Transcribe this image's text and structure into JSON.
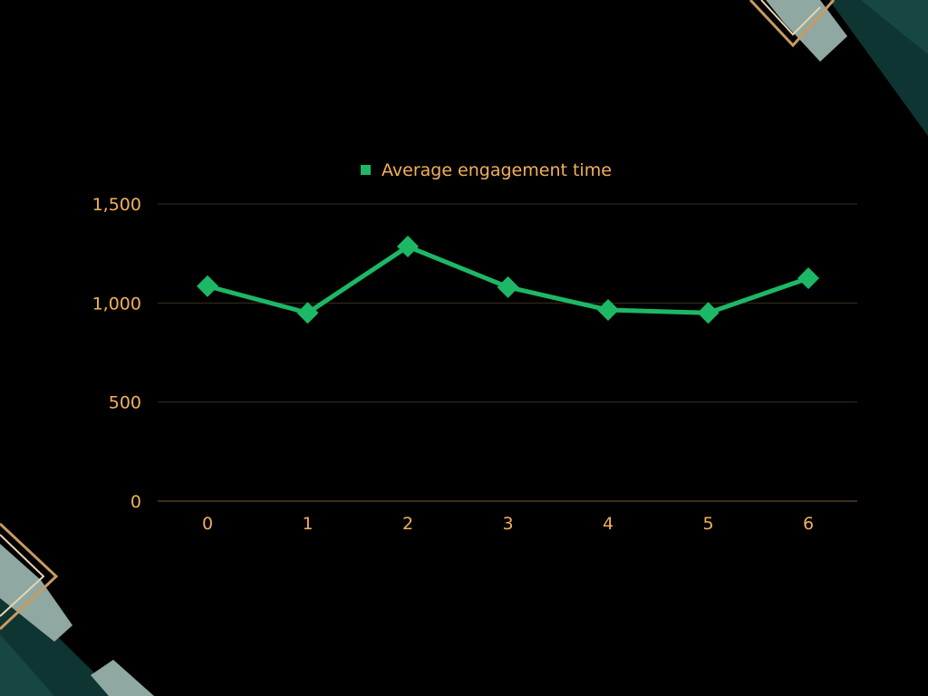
{
  "chart_data": {
    "type": "line",
    "x": [
      0,
      1,
      2,
      3,
      4,
      5,
      6
    ],
    "series": [
      {
        "name": "Average engagement time",
        "values": [
          1085,
          950,
          1285,
          1080,
          965,
          950,
          1125
        ]
      }
    ],
    "ylim": [
      0,
      1500
    ],
    "yticks": [
      0,
      500,
      1000,
      1500
    ],
    "ytick_labels": [
      "0",
      "500",
      "1,000",
      "1,500"
    ],
    "xtick_labels": [
      "0",
      "1",
      "2",
      "3",
      "4",
      "5",
      "6"
    ],
    "grid": true,
    "legend_position": "top-center"
  },
  "colors": {
    "background": "#000000",
    "series": "#1db866",
    "tick_text": "#f2b15a",
    "legend_text": "#f2b15a",
    "gridline": "#3a2e1f",
    "axis": "#7a5a36"
  }
}
